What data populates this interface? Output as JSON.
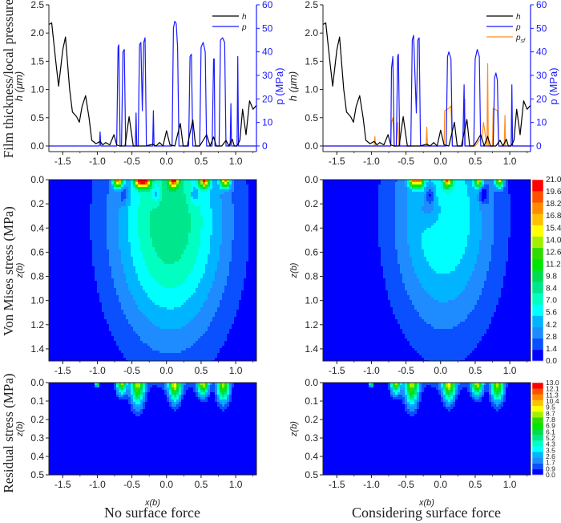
{
  "row_labels": {
    "top": "Film thickness/local pressure",
    "middle": "Von Mises stress (MPa)",
    "bottom": "Residual stress (MPa)"
  },
  "captions": {
    "left": "No surface force",
    "right": "Considering surface force"
  },
  "colors": {
    "h": "#000000",
    "p": "#1a1aff",
    "psf": "#ff8c1a"
  },
  "chart_data": [
    {
      "id": "film-left",
      "type": "line",
      "xlabel": "",
      "ylabel": "h (μm)",
      "y2label": "p (MPa)",
      "xlim": [
        -1.7,
        1.3
      ],
      "ylim": [
        -0.1,
        2.5
      ],
      "y2lim": [
        -2.4,
        60
      ],
      "xticks": [
        "-1.5",
        "-1.0",
        "-0.5",
        "0.0",
        "0.5",
        "1.0"
      ],
      "yticks": [
        "0.0",
        "0.5",
        "1.0",
        "1.5",
        "2.0",
        "2.5"
      ],
      "y2ticks": [
        "0",
        "10",
        "20",
        "30",
        "40",
        "50",
        "60"
      ],
      "legend": [
        "h",
        "p"
      ],
      "legend_position": "top-right",
      "series": [
        {
          "name": "h",
          "axis": "left",
          "x": [
            -1.7,
            -1.66,
            -1.6,
            -1.56,
            -1.5,
            -1.46,
            -1.4,
            -1.36,
            -1.3,
            -1.26,
            -1.22,
            -1.17,
            -1.12,
            -1.08,
            -1.02,
            -0.96,
            -0.92,
            -0.88,
            -0.82,
            -0.76,
            -0.72,
            -0.68,
            -0.6,
            -0.54,
            -0.48,
            -0.4,
            -0.3,
            -0.2,
            -0.15,
            -0.1,
            -0.05,
            0.0,
            0.05,
            0.12,
            0.2,
            0.24,
            0.3,
            0.38,
            0.42,
            0.48,
            0.58,
            0.63,
            0.68,
            0.72,
            0.76,
            0.8,
            0.86,
            0.9,
            0.95,
            0.98,
            1.02,
            1.06,
            1.1,
            1.15,
            1.2,
            1.25,
            1.3
          ],
          "y": [
            2.15,
            2.18,
            1.5,
            1.06,
            1.7,
            1.93,
            1.0,
            0.6,
            0.52,
            0.42,
            0.7,
            0.89,
            0.5,
            0.1,
            0.04,
            0.08,
            0.02,
            0.06,
            0.02,
            0.2,
            0.02,
            0.0,
            0.0,
            0.52,
            0.0,
            0.0,
            0.0,
            0.03,
            0.0,
            0.06,
            0.0,
            0.27,
            0.02,
            0.0,
            0.4,
            0.0,
            0.0,
            0.46,
            0.0,
            0.0,
            0.2,
            0.0,
            0.16,
            0.0,
            0.0,
            0.0,
            0.1,
            0.0,
            0.12,
            0.0,
            0.0,
            0.1,
            0.65,
            0.2,
            0.8,
            0.65,
            0.72
          ]
        },
        {
          "name": "p",
          "axis": "right",
          "x": [
            -1.7,
            -1.0,
            -0.97,
            -0.96,
            -0.95,
            -0.72,
            -0.7,
            -0.69,
            -0.67,
            -0.65,
            -0.63,
            -0.61,
            -0.59,
            -0.5,
            -0.45,
            -0.44,
            -0.43,
            -0.41,
            -0.39,
            -0.37,
            -0.35,
            -0.33,
            -0.31,
            -0.29,
            -0.27,
            -0.2,
            -0.19,
            -0.18,
            0.0,
            0.08,
            0.1,
            0.12,
            0.14,
            0.16,
            0.18,
            0.32,
            0.34,
            0.36,
            0.38,
            0.48,
            0.5,
            0.53,
            0.56,
            0.58,
            0.6,
            0.66,
            0.68,
            0.69,
            0.7,
            0.76,
            0.78,
            0.81,
            0.84,
            0.86,
            0.9,
            0.92,
            0.93,
            0.94,
            1.0,
            1.02,
            1.03,
            1.04,
            1.3
          ],
          "y": [
            0,
            0,
            0,
            6,
            0,
            0,
            42,
            43,
            0,
            0,
            40,
            41,
            0,
            0,
            0,
            14,
            0,
            0,
            43,
            44,
            15,
            44,
            46,
            0,
            0,
            0,
            15,
            0,
            0,
            0,
            50,
            53,
            52,
            42,
            0,
            0,
            38,
            39,
            0,
            0,
            42,
            44,
            40,
            0,
            0,
            0,
            37,
            37,
            0,
            0,
            45,
            46,
            44,
            0,
            0,
            0,
            18,
            0,
            0,
            0,
            38,
            0,
            0
          ]
        }
      ]
    },
    {
      "id": "film-right",
      "type": "line",
      "xlabel": "",
      "ylabel": "h (μm)",
      "y2label": "p (MPa)",
      "xlim": [
        -1.7,
        1.3
      ],
      "ylim": [
        -0.1,
        2.5
      ],
      "y2lim": [
        -2.4,
        60
      ],
      "xticks": [
        "-1.5",
        "-1.0",
        "-0.5",
        "0.0",
        "0.5",
        "1.0"
      ],
      "yticks": [
        "0.0",
        "0.5",
        "1.0",
        "1.5",
        "2.0",
        "2.5"
      ],
      "y2ticks": [
        "0",
        "10",
        "20",
        "30",
        "40",
        "50",
        "60"
      ],
      "legend": [
        "h",
        "p",
        "p_sf"
      ],
      "legend_position": "top-right",
      "series": [
        {
          "name": "h",
          "axis": "left",
          "x": [
            -1.7,
            -1.66,
            -1.6,
            -1.56,
            -1.5,
            -1.46,
            -1.4,
            -1.36,
            -1.3,
            -1.26,
            -1.22,
            -1.17,
            -1.12,
            -1.08,
            -1.02,
            -0.96,
            -0.92,
            -0.88,
            -0.82,
            -0.76,
            -0.72,
            -0.68,
            -0.6,
            -0.54,
            -0.48,
            -0.4,
            -0.3,
            -0.2,
            -0.15,
            -0.1,
            -0.05,
            0.0,
            0.05,
            0.12,
            0.2,
            0.24,
            0.3,
            0.38,
            0.42,
            0.48,
            0.58,
            0.63,
            0.68,
            0.72,
            0.76,
            0.8,
            0.86,
            0.9,
            0.95,
            0.98,
            1.02,
            1.06,
            1.1,
            1.15,
            1.2,
            1.25,
            1.3
          ],
          "y": [
            2.15,
            2.18,
            1.5,
            1.06,
            1.7,
            1.93,
            1.0,
            0.6,
            0.52,
            0.42,
            0.7,
            0.89,
            0.5,
            0.1,
            0.04,
            0.08,
            0.02,
            0.06,
            0.02,
            0.2,
            0.02,
            0.0,
            0.0,
            0.52,
            0.0,
            0.0,
            0.0,
            0.03,
            0.0,
            0.06,
            0.0,
            0.28,
            0.02,
            0.0,
            0.42,
            0.0,
            0.0,
            0.47,
            0.0,
            0.0,
            0.2,
            0.0,
            0.17,
            0.0,
            0.0,
            0.0,
            0.1,
            0.0,
            0.12,
            0.0,
            0.0,
            0.1,
            0.65,
            0.2,
            0.8,
            0.65,
            0.72
          ]
        },
        {
          "name": "p",
          "axis": "right",
          "x": [
            -1.7,
            -0.72,
            -0.71,
            -0.69,
            -0.67,
            -0.64,
            -0.62,
            -0.61,
            -0.59,
            -0.45,
            -0.43,
            -0.41,
            -0.39,
            -0.37,
            -0.35,
            -0.33,
            -0.31,
            -0.29,
            -0.0,
            0.08,
            0.1,
            0.12,
            0.15,
            0.17,
            0.32,
            0.34,
            0.35,
            0.36,
            0.48,
            0.5,
            0.53,
            0.56,
            0.58,
            0.76,
            0.78,
            0.8,
            0.82,
            0.84,
            1.0,
            1.02,
            1.03,
            1.04,
            1.3
          ],
          "y": [
            0,
            0,
            33,
            38,
            0,
            0,
            38,
            39,
            0,
            0,
            0,
            45,
            47,
            30,
            14,
            45,
            46,
            0,
            0,
            0,
            38,
            40,
            37,
            0,
            0,
            26,
            0,
            0,
            0,
            37,
            41,
            38,
            0,
            0,
            29,
            31,
            28,
            0,
            0,
            0,
            26,
            0,
            0
          ]
        },
        {
          "name": "p_sf",
          "axis": "right",
          "x": [
            -1.7,
            -0.96,
            -0.95,
            -0.94,
            -0.72,
            -0.71,
            -0.69,
            -0.67,
            -0.64,
            -0.62,
            -0.6,
            -0.21,
            -0.2,
            -0.19,
            0.05,
            0.06,
            0.12,
            0.15,
            0.17,
            0.32,
            0.34,
            0.35,
            0.36,
            0.5,
            0.55,
            0.6,
            0.62,
            0.67,
            0.68,
            0.69,
            0.75,
            0.76,
            0.82,
            0.84,
            0.92,
            0.93,
            0.94,
            1.0,
            1.02,
            1.03,
            1.04,
            1.3
          ],
          "y": [
            0,
            0,
            4,
            0,
            0,
            10,
            12,
            0,
            0,
            10,
            0,
            0,
            8,
            0,
            0,
            15,
            16,
            17,
            0,
            0,
            12,
            20,
            0,
            0,
            2,
            4,
            10,
            0,
            35,
            0,
            0,
            16,
            15,
            0,
            0,
            13,
            0,
            0,
            0,
            12,
            0,
            0
          ]
        }
      ]
    },
    {
      "id": "vonmises-left",
      "type": "heatmap",
      "xlabel": "",
      "ylabel": "z(b)",
      "xlim": [
        -1.7,
        1.3
      ],
      "ylim": [
        0.0,
        1.5
      ],
      "xticks": [
        "-1.5",
        "-1.0",
        "-0.5",
        "0.0",
        "0.5",
        "1.0"
      ],
      "yticks": [
        "0.0",
        "0.2",
        "0.4",
        "0.6",
        "0.8",
        "1.0",
        "1.2",
        "1.4"
      ],
      "colorbar": {
        "levels": [
          "0.0",
          "1.4",
          "2.8",
          "4.2",
          "5.6",
          "7.0",
          "8.4",
          "9.8",
          "11.2",
          "12.6",
          "14.0",
          "15.4",
          "16.8",
          "18.2",
          "19.6",
          "21.0"
        ]
      },
      "peak_level_center": "≈ 8–10 MPa near x≈0.2, z≈0.45",
      "surface_hotspots_x": [
        -0.7,
        -0.4,
        -0.3,
        0.1,
        0.55,
        0.85
      ]
    },
    {
      "id": "vonmises-right",
      "type": "heatmap",
      "xlabel": "",
      "ylabel": "z(b)",
      "xlim": [
        -1.7,
        1.3
      ],
      "ylim": [
        0.0,
        1.5
      ],
      "xticks": [
        "-1.5",
        "-1.0",
        "-0.5",
        "0.0",
        "0.5",
        "1.0"
      ],
      "yticks": [
        "0.0",
        "0.2",
        "0.4",
        "0.6",
        "0.8",
        "1.0",
        "1.2",
        "1.4"
      ],
      "colorbar": {
        "levels": [
          "0.0",
          "1.4",
          "2.8",
          "4.2",
          "5.6",
          "7.0",
          "8.4",
          "9.8",
          "11.2",
          "12.6",
          "14.0",
          "15.4",
          "16.8",
          "18.2",
          "19.6",
          "21.0"
        ]
      },
      "surface_hotspots_x": [
        -0.4,
        -0.3,
        0.1,
        0.55,
        0.85
      ]
    },
    {
      "id": "residual-left",
      "type": "heatmap",
      "xlabel": "x(b)",
      "ylabel": "z(b)",
      "xlim": [
        -1.7,
        1.3
      ],
      "ylim": [
        0.0,
        0.5
      ],
      "xticks": [
        "-1.5",
        "-1.0",
        "-0.5",
        "0.0",
        "0.5",
        "1.0"
      ],
      "yticks": [
        "0.0",
        "0.1",
        "0.2",
        "0.3",
        "0.4",
        "0.5"
      ],
      "colorbar": {
        "levels": [
          "0.0",
          "0.9",
          "1.7",
          "2.6",
          "3.5",
          "4.3",
          "5.2",
          "6.1",
          "6.9",
          "7.8",
          "8.7",
          "9.5",
          "10.4",
          "11.3",
          "12.1",
          "13.0"
        ]
      },
      "surface_hotspots_x": [
        -1.0,
        -0.65,
        -0.42,
        0.12,
        0.53,
        0.82
      ]
    },
    {
      "id": "residual-right",
      "type": "heatmap",
      "xlabel": "x(b)",
      "ylabel": "z(b)",
      "xlim": [
        -1.7,
        1.3
      ],
      "ylim": [
        0.0,
        0.5
      ],
      "xticks": [
        "-1.5",
        "-1.0",
        "-0.5",
        "0.0",
        "0.5",
        "1.0"
      ],
      "yticks": [
        "0.0",
        "0.1",
        "0.2",
        "0.3",
        "0.4",
        "0.5"
      ],
      "colorbar": {
        "levels": [
          "0.0",
          "0.9",
          "1.7",
          "2.6",
          "3.5",
          "4.3",
          "5.2",
          "6.1",
          "6.9",
          "7.8",
          "8.7",
          "9.5",
          "10.4",
          "11.3",
          "12.1",
          "13.0"
        ]
      },
      "surface_hotspots_x": [
        -1.0,
        -0.65,
        -0.42,
        0.12,
        0.53,
        0.82
      ]
    }
  ]
}
